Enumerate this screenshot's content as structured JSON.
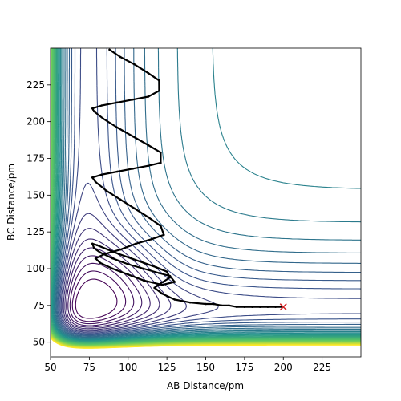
{
  "chart_data": {
    "type": "contour",
    "xlabel": "AB Distance/pm",
    "ylabel": "BC Distance/pm",
    "xlim": [
      50,
      250
    ],
    "ylim": [
      40,
      250
    ],
    "x_ticks": [
      50,
      75,
      100,
      125,
      150,
      175,
      200,
      225
    ],
    "y_ticks": [
      50,
      75,
      100,
      125,
      150,
      175,
      200,
      225
    ],
    "grid": false,
    "legend": "none",
    "colormap": [
      "#440154",
      "#3b528b",
      "#21918c",
      "#5ec962",
      "#fde725"
    ],
    "trajectory": {
      "color": "#000000",
      "points": [
        [
          200,
          74
        ],
        [
          195,
          74
        ],
        [
          190,
          74
        ],
        [
          185,
          74
        ],
        [
          180,
          74
        ],
        [
          175,
          74
        ],
        [
          170,
          74
        ],
        [
          165,
          75
        ],
        [
          160,
          75
        ],
        [
          155,
          76
        ],
        [
          150,
          76
        ],
        [
          140,
          77
        ],
        [
          130,
          79
        ],
        [
          122,
          83
        ],
        [
          117,
          87
        ],
        [
          121,
          90
        ],
        [
          127,
          94
        ],
        [
          125,
          98
        ],
        [
          118,
          101
        ],
        [
          110,
          104
        ],
        [
          102,
          107
        ],
        [
          94,
          110
        ],
        [
          87,
          113
        ],
        [
          80,
          116
        ],
        [
          77,
          117
        ],
        [
          78,
          114
        ],
        [
          82,
          111
        ],
        [
          90,
          107
        ],
        [
          100,
          103
        ],
        [
          110,
          100
        ],
        [
          120,
          97
        ],
        [
          127,
          95
        ],
        [
          130,
          91
        ],
        [
          122,
          89
        ],
        [
          110,
          92
        ],
        [
          100,
          96
        ],
        [
          90,
          100
        ],
        [
          82,
          104
        ],
        [
          79,
          107
        ],
        [
          85,
          110
        ],
        [
          95,
          113
        ],
        [
          105,
          117
        ],
        [
          115,
          120
        ],
        [
          123,
          123
        ],
        [
          121,
          129
        ],
        [
          113,
          135
        ],
        [
          104,
          141
        ],
        [
          95,
          147
        ],
        [
          86,
          153
        ],
        [
          79,
          159
        ],
        [
          77,
          162
        ],
        [
          83,
          164
        ],
        [
          93,
          166
        ],
        [
          103,
          168
        ],
        [
          113,
          170
        ],
        [
          121,
          172
        ],
        [
          121,
          179
        ],
        [
          113,
          184
        ],
        [
          103,
          190
        ],
        [
          93,
          196
        ],
        [
          84,
          202
        ],
        [
          78,
          207
        ],
        [
          77,
          209
        ],
        [
          83,
          211
        ],
        [
          93,
          213
        ],
        [
          103,
          215
        ],
        [
          113,
          217
        ],
        [
          120,
          221
        ],
        [
          120,
          228
        ],
        [
          113,
          233
        ],
        [
          104,
          239
        ],
        [
          95,
          244
        ],
        [
          88,
          249
        ]
      ]
    },
    "end_marker": {
      "x": 200,
      "y": 74,
      "symbol": "x",
      "color": "#d62728"
    }
  }
}
